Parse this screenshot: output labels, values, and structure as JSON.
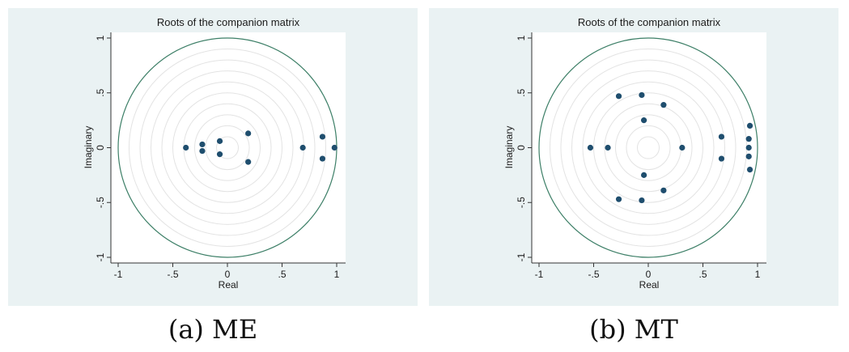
{
  "captions": [
    "(a) ME",
    "(b) MT"
  ],
  "chart_data": [
    {
      "type": "scatter",
      "title": "Roots of the companion matrix",
      "xlabel": "Real",
      "ylabel": "Imaginary",
      "xlim": [
        -1,
        1
      ],
      "ylim": [
        -1,
        1
      ],
      "xticks": [
        "-1",
        "-.5",
        "0",
        ".5",
        "1"
      ],
      "yticks": [
        "-1",
        "-.5",
        "0",
        ".5",
        "1"
      ],
      "unit_circle": true,
      "reference_circles": true,
      "colors": {
        "points": "#1f4e6e",
        "circle": "#3d7f67",
        "grid": "#e3e3e3"
      },
      "points": [
        {
          "x": -0.38,
          "y": 0.0
        },
        {
          "x": -0.23,
          "y": 0.03
        },
        {
          "x": -0.23,
          "y": -0.03
        },
        {
          "x": -0.07,
          "y": 0.06
        },
        {
          "x": -0.07,
          "y": -0.06
        },
        {
          "x": 0.19,
          "y": 0.13
        },
        {
          "x": 0.19,
          "y": -0.13
        },
        {
          "x": 0.69,
          "y": 0.0
        },
        {
          "x": 0.87,
          "y": 0.1
        },
        {
          "x": 0.87,
          "y": -0.1
        },
        {
          "x": 0.98,
          "y": 0.0
        }
      ]
    },
    {
      "type": "scatter",
      "title": "Roots of the companion matrix",
      "xlabel": "Real",
      "ylabel": "Imaginary",
      "xlim": [
        -1,
        1
      ],
      "ylim": [
        -1,
        1
      ],
      "xticks": [
        "-1",
        "-.5",
        "0",
        ".5",
        "1"
      ],
      "yticks": [
        "-1",
        "-.5",
        "0",
        ".5",
        "1"
      ],
      "unit_circle": true,
      "reference_circles": true,
      "colors": {
        "points": "#1f4e6e",
        "circle": "#3d7f67",
        "grid": "#e3e3e3"
      },
      "points": [
        {
          "x": -0.53,
          "y": 0.0
        },
        {
          "x": -0.37,
          "y": 0.0
        },
        {
          "x": -0.27,
          "y": 0.47
        },
        {
          "x": -0.27,
          "y": -0.47
        },
        {
          "x": -0.06,
          "y": 0.48
        },
        {
          "x": -0.06,
          "y": -0.48
        },
        {
          "x": -0.04,
          "y": 0.25
        },
        {
          "x": -0.04,
          "y": -0.25
        },
        {
          "x": 0.14,
          "y": 0.39
        },
        {
          "x": 0.14,
          "y": -0.39
        },
        {
          "x": 0.31,
          "y": 0.0
        },
        {
          "x": 0.67,
          "y": 0.1
        },
        {
          "x": 0.67,
          "y": -0.1
        },
        {
          "x": 0.92,
          "y": 0.08
        },
        {
          "x": 0.92,
          "y": 0.0
        },
        {
          "x": 0.92,
          "y": -0.08
        },
        {
          "x": 0.93,
          "y": 0.2
        },
        {
          "x": 0.93,
          "y": -0.2
        }
      ]
    }
  ]
}
